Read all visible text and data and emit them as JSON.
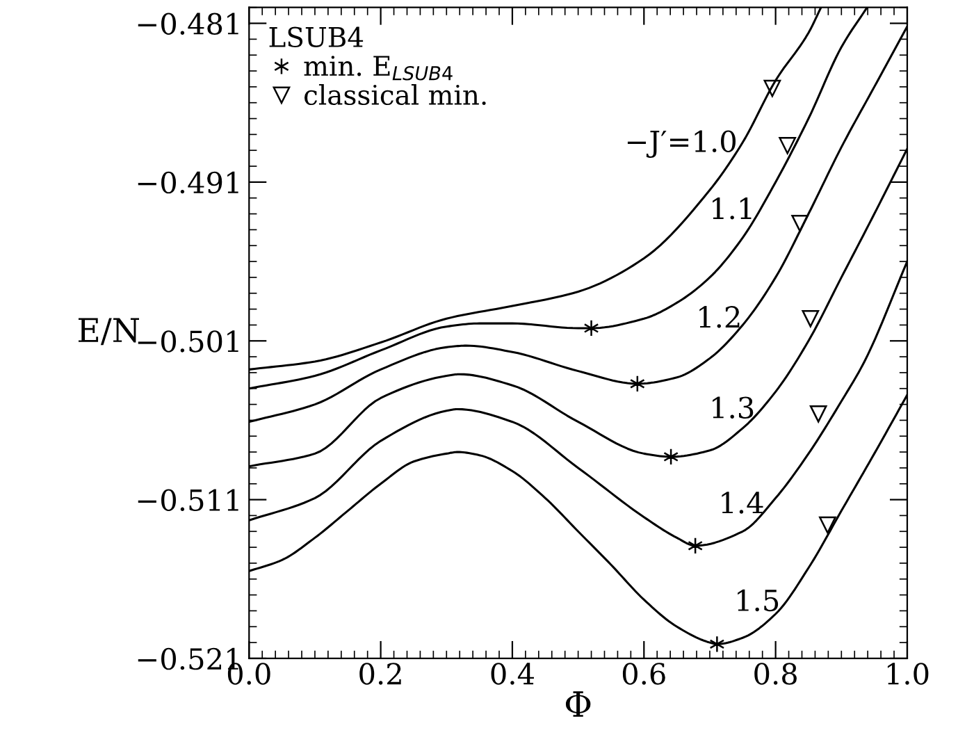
{
  "chart_data": {
    "type": "line",
    "xlabel": "Φ",
    "ylabel": "E/N",
    "legend_title": "LSUB4",
    "legend": "top left",
    "grid": false,
    "line_style": "solid",
    "marker": "none",
    "xlim": [
      0,
      1
    ],
    "ylim": [
      -0.521,
      -0.48
    ],
    "xticks": [
      {
        "value": 0,
        "label": "0.0"
      },
      {
        "value": 0.2,
        "label": "0.2"
      },
      {
        "value": 0.4,
        "label": "0.4"
      },
      {
        "value": 0.6,
        "label": "0.6"
      },
      {
        "value": 0.8,
        "label": "0.8"
      },
      {
        "value": 1,
        "label": "1.0"
      }
    ],
    "yticks": [
      {
        "value": -0.521,
        "label": "−0.521"
      },
      {
        "value": -0.511,
        "label": "−0.511"
      },
      {
        "value": -0.501,
        "label": "−0.501"
      },
      {
        "value": -0.491,
        "label": "−0.491"
      },
      {
        "value": -0.481,
        "label": "−0.481"
      }
    ],
    "series": [
      {
        "name": "−J′=1.0",
        "color": "#000000",
        "x": [
          0,
          0.1,
          0.2,
          0.3,
          0.4,
          0.5,
          0.6,
          0.7,
          0.75,
          0.8,
          0.85,
          0.869
        ],
        "values": [
          -0.5028,
          -0.5023,
          -0.5011,
          -0.4996,
          -0.4988,
          -0.4979,
          -0.4958,
          -0.4915,
          -0.4885,
          -0.4846,
          -0.4816,
          -0.48
        ]
      },
      {
        "name": "1.1",
        "color": "#000000",
        "x": [
          0,
          0.1,
          0.2,
          0.3,
          0.35,
          0.4,
          0.5,
          0.52,
          0.6,
          0.65,
          0.7,
          0.75,
          0.8,
          0.85,
          0.9,
          0.939
        ],
        "values": [
          -0.504,
          -0.5032,
          -0.5016,
          -0.5001,
          -0.4999,
          -0.4999,
          -0.5002,
          -0.5002,
          -0.4996,
          -0.4986,
          -0.497,
          -0.4945,
          -0.491,
          -0.487,
          -0.4825,
          -0.48
        ]
      },
      {
        "name": "1.2",
        "color": "#000000",
        "x": [
          0,
          0.1,
          0.2,
          0.3,
          0.33,
          0.4,
          0.5,
          0.59,
          0.65,
          0.7,
          0.75,
          0.8,
          0.85,
          0.9,
          0.95,
          1.0
        ],
        "values": [
          -0.5061,
          -0.505,
          -0.5028,
          -0.5014,
          -0.5013,
          -0.5017,
          -0.5029,
          -0.5037,
          -0.5033,
          -0.5021,
          -0.5,
          -0.497,
          -0.493,
          -0.4888,
          -0.485,
          -0.4812
        ]
      },
      {
        "name": "1.3",
        "color": "#000000",
        "x": [
          0,
          0.1,
          0.2,
          0.3,
          0.32,
          0.4,
          0.5,
          0.6,
          0.641,
          0.7,
          0.75,
          0.8,
          0.85,
          0.9,
          0.95,
          1.0
        ],
        "values": [
          -0.5089,
          -0.5081,
          -0.5046,
          -0.5032,
          -0.5031,
          -0.5038,
          -0.5061,
          -0.5081,
          -0.5083,
          -0.5079,
          -0.5065,
          -0.5042,
          -0.501,
          -0.497,
          -0.493,
          -0.4889
        ]
      },
      {
        "name": "1.4",
        "color": "#000000",
        "x": [
          0,
          0.1,
          0.2,
          0.3,
          0.317,
          0.4,
          0.5,
          0.6,
          0.65,
          0.678,
          0.75,
          0.8,
          0.85,
          0.9,
          0.935,
          1.0
        ],
        "values": [
          -0.5123,
          -0.5109,
          -0.5073,
          -0.5054,
          -0.5053,
          -0.5061,
          -0.509,
          -0.5121,
          -0.5134,
          -0.5139,
          -0.513,
          -0.5109,
          -0.5081,
          -0.5048,
          -0.5023,
          -0.496
        ]
      },
      {
        "name": "1.5",
        "color": "#000000",
        "x": [
          0,
          0.05,
          0.1,
          0.15,
          0.2,
          0.25,
          0.3,
          0.317,
          0.35,
          0.4,
          0.45,
          0.5,
          0.55,
          0.6,
          0.65,
          0.7,
          0.711,
          0.75,
          0.8,
          0.85,
          0.9,
          0.95,
          1.0
        ],
        "values": [
          -0.5155,
          -0.5148,
          -0.5134,
          -0.5117,
          -0.51,
          -0.5086,
          -0.5081,
          -0.508,
          -0.5082,
          -0.5092,
          -0.5109,
          -0.513,
          -0.5151,
          -0.5173,
          -0.519,
          -0.52,
          -0.5201,
          -0.5197,
          -0.5182,
          -0.5153,
          -0.5117,
          -0.5081,
          -0.5044
        ]
      },
      {
        "type": "scatter",
        "name": "min. E$_{LSUB4}$",
        "marker": "cross",
        "color": "#000000",
        "x": [
          0.52,
          0.59,
          0.641,
          0.678,
          0.711
        ],
        "values": [
          -0.5002,
          -0.5037,
          -0.5083,
          -0.5139,
          -0.5201
        ]
      },
      {
        "type": "scatter",
        "name": "classical min.",
        "marker": "triangle",
        "color": "#000000",
        "x": [
          0.795,
          0.818,
          0.837,
          0.853,
          0.865,
          0.879
        ],
        "values": [
          -0.4851,
          -0.4887,
          -0.4936,
          -0.4996,
          -0.5056,
          -0.5126
        ]
      }
    ]
  }
}
